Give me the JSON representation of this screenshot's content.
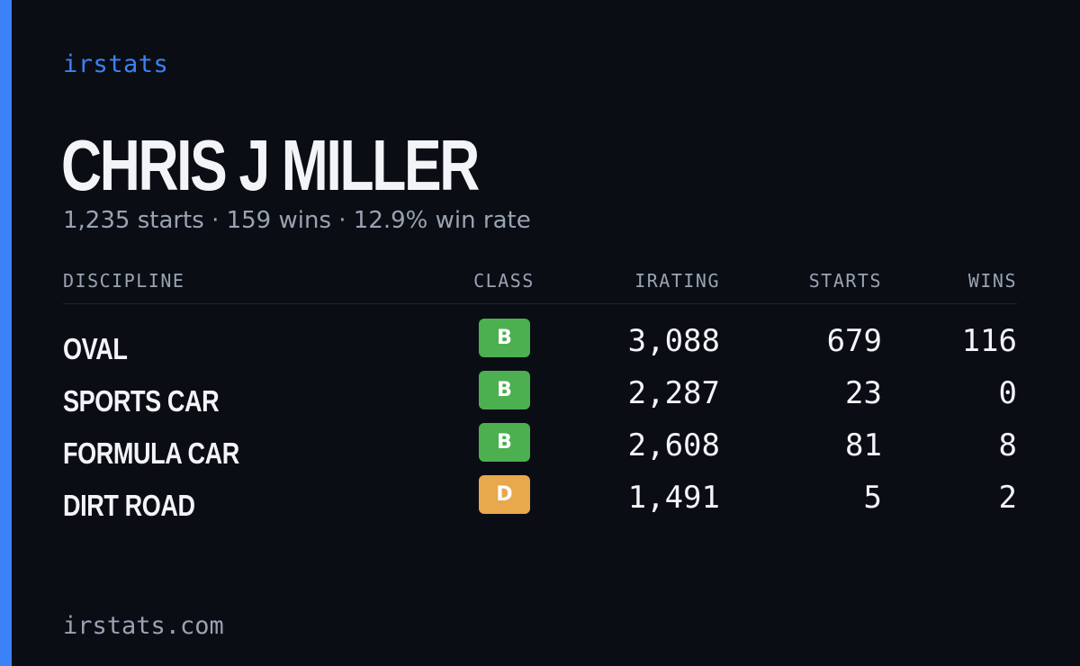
{
  "colors": {
    "background": "#0a0d14",
    "accent": "#3b82f6",
    "text": "#f2f4f7",
    "muted": "#9aa3b2",
    "class_b": "#4caf50",
    "class_d": "#e8a84c"
  },
  "brand": "irstats",
  "driver": {
    "name": "CHRIS J MILLER",
    "summary": "1,235 starts · 159 wins · 12.9% win rate"
  },
  "table": {
    "headers": {
      "discipline": "DISCIPLINE",
      "class": "CLASS",
      "irating": "IRATING",
      "starts": "STARTS",
      "wins": "WINS"
    },
    "rows": [
      {
        "discipline": "OVAL",
        "class": "B",
        "class_color": "#4caf50",
        "irating": "3,088",
        "starts": "679",
        "wins": "116"
      },
      {
        "discipline": "SPORTS CAR",
        "class": "B",
        "class_color": "#4caf50",
        "irating": "2,287",
        "starts": "23",
        "wins": "0"
      },
      {
        "discipline": "FORMULA CAR",
        "class": "B",
        "class_color": "#4caf50",
        "irating": "2,608",
        "starts": "81",
        "wins": "8"
      },
      {
        "discipline": "DIRT ROAD",
        "class": "D",
        "class_color": "#e8a84c",
        "irating": "1,491",
        "starts": "5",
        "wins": "2"
      }
    ]
  },
  "footer": "irstats.com"
}
